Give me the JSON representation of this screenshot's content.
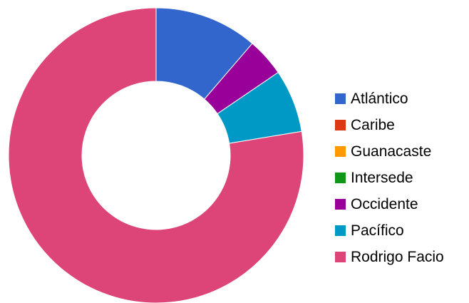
{
  "chart_data": {
    "type": "pie",
    "donut": true,
    "categories": [
      "Atlántico",
      "Caribe",
      "Guanacaste",
      "Intersede",
      "Occidente",
      "Pacífico",
      "Rodrigo Facio"
    ],
    "values": [
      11.3,
      0,
      0,
      0,
      4.2,
      6.9,
      77.6
    ],
    "colors": [
      "#3366cc",
      "#dc3912",
      "#ff9900",
      "#109618",
      "#990099",
      "#0099c6",
      "#dd4477"
    ],
    "legend_position": "right",
    "title": "",
    "xlabel": "",
    "ylabel": ""
  }
}
